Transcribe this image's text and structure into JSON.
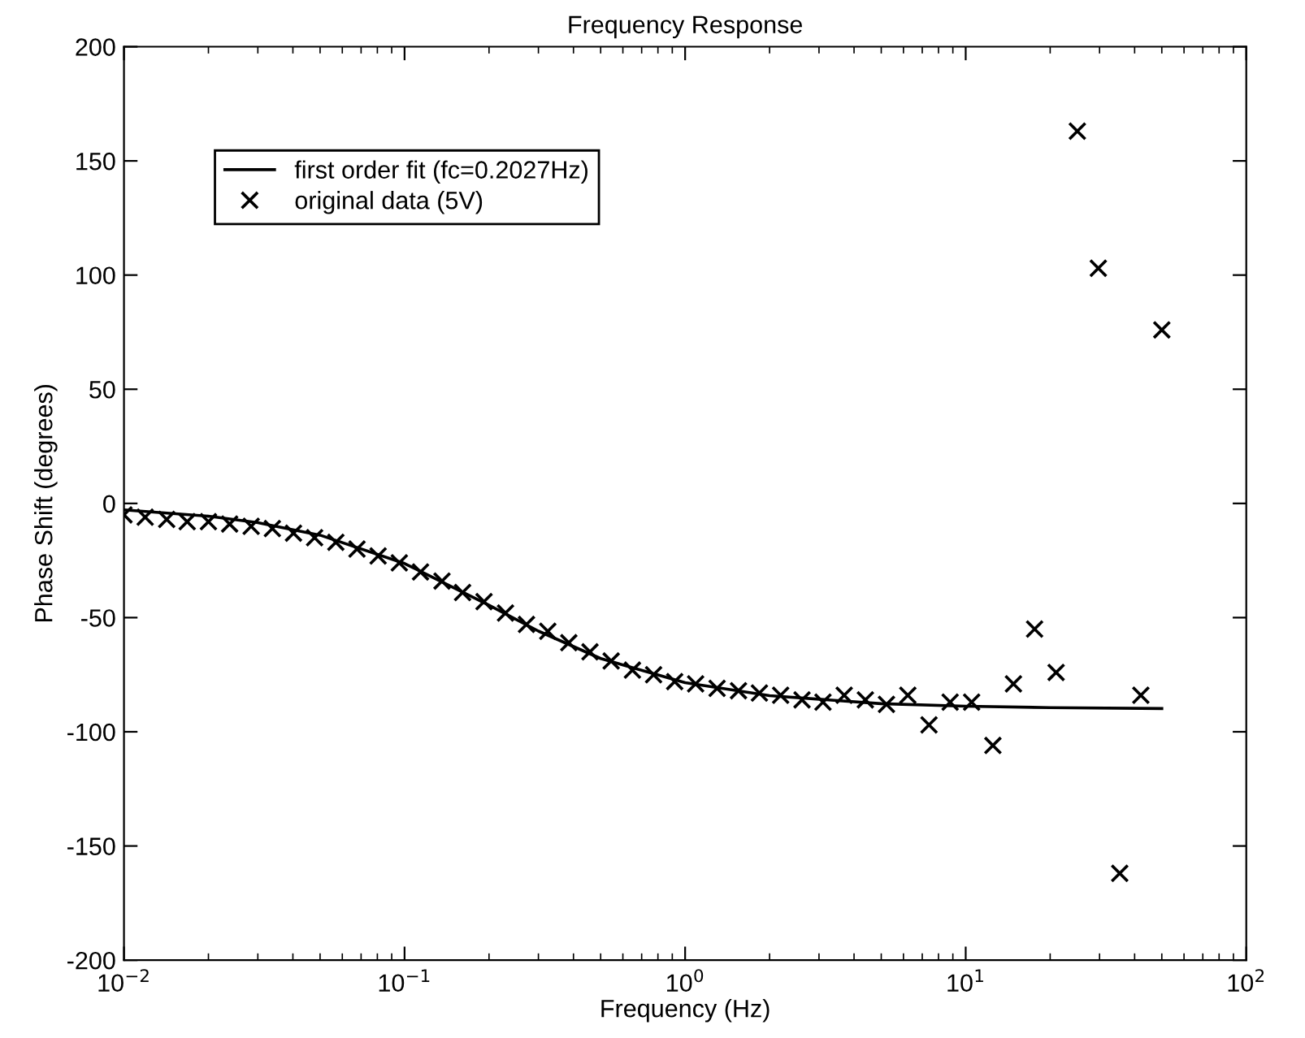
{
  "chart_data": {
    "type": "scatter",
    "title": "Frequency Response",
    "xlabel": "Frequency (Hz)",
    "ylabel": "Phase Shift (degrees)",
    "log": "x",
    "grid": false,
    "legend": "top left",
    "xlim": [
      0.01,
      100
    ],
    "xticks": [
      {
        "value": 0.01,
        "label": "10$^{−2}$"
      },
      {
        "value": 0.1,
        "label": "10$^{−1}$"
      },
      {
        "value": 1,
        "label": "10$^{0}$"
      },
      {
        "value": 10,
        "label": "10$^{1}$"
      },
      {
        "value": 100,
        "label": "10$^{2}$"
      }
    ],
    "ylim": [
      -200,
      200
    ],
    "yticks": [
      -200,
      -150,
      -100,
      -50,
      0,
      50,
      100,
      150,
      200
    ],
    "series": [
      {
        "name": "first order fit (fc=0.2027Hz)",
        "type": "line",
        "color": "#000000",
        "line_style": "solid",
        "marker": "none",
        "x": [
          0.01,
          0.02,
          0.03,
          0.05,
          0.1,
          0.2,
          0.3,
          0.5,
          1,
          2,
          5,
          10,
          20,
          50
        ],
        "values": [
          -2.8,
          -5.6,
          -8.4,
          -13.9,
          -26.3,
          -44.6,
          -55.9,
          -67.9,
          -78.5,
          -84.2,
          -87.7,
          -88.8,
          -89.4,
          -89.8
        ]
      },
      {
        "name": "original data (5V)",
        "color": "#000000",
        "marker": "cross",
        "x": [
          0.01,
          0.0119,
          0.0142,
          0.0168,
          0.02,
          0.0238,
          0.0284,
          0.0338,
          0.0402,
          0.0478,
          0.0569,
          0.0677,
          0.0805,
          0.0958,
          0.114,
          0.136,
          0.161,
          0.192,
          0.229,
          0.272,
          0.324,
          0.385,
          0.458,
          0.545,
          0.649,
          0.772,
          0.918,
          1.09,
          1.3,
          1.55,
          1.84,
          2.19,
          2.61,
          3.1,
          3.69,
          4.39,
          5.22,
          6.22,
          7.4,
          8.8,
          10.5,
          12.5,
          14.8,
          17.6,
          21,
          25,
          29.7,
          35.4,
          42.1,
          50
        ],
        "values": [
          -5,
          -6,
          -7,
          -8,
          -8,
          -9,
          -10,
          -11,
          -13,
          -15,
          -17,
          -20,
          -23,
          -26,
          -30,
          -34,
          -39,
          -43,
          -48,
          -53,
          -56,
          -61,
          -65,
          -69,
          -73,
          -75,
          -78,
          -79,
          -81,
          -82,
          -83,
          -84,
          -86,
          -87,
          -84,
          -86,
          -88,
          -84,
          -97,
          -87,
          -87,
          -106,
          -79,
          -55,
          -74,
          163,
          103,
          -162,
          -84,
          76
        ]
      }
    ]
  }
}
